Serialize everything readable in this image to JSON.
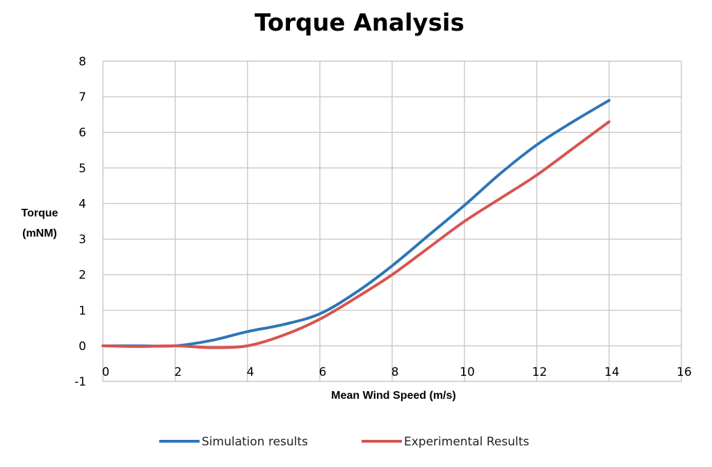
{
  "chart_data": {
    "type": "line",
    "title": "Torque Analysis",
    "xlabel": "Mean Wind Speed (m/s)",
    "ylabel_lines": [
      "Torque",
      "(mNM)"
    ],
    "xlim": [
      0,
      16
    ],
    "ylim": [
      -1,
      8
    ],
    "xticks": [
      "0",
      "2",
      "4",
      "6",
      "8",
      "10",
      "12",
      "14",
      "16"
    ],
    "yticks": [
      "-1",
      "0",
      "1",
      "2",
      "3",
      "4",
      "5",
      "6",
      "7",
      "8"
    ],
    "grid": true,
    "legend_position": "bottom",
    "series": [
      {
        "name": "Simulation results",
        "color": "#2e75b6",
        "x": [
          0,
          1,
          2,
          3,
          4,
          5,
          6,
          7,
          8,
          9,
          10,
          11,
          12,
          13,
          14
        ],
        "y": [
          0,
          0,
          0,
          0.15,
          0.4,
          0.6,
          0.9,
          1.5,
          2.25,
          3.1,
          3.95,
          4.85,
          5.65,
          6.3,
          6.9
        ]
      },
      {
        "name": "Experimental Results",
        "color": "#d9534f",
        "x": [
          0,
          1,
          2,
          3,
          4,
          5,
          6,
          7,
          8,
          9,
          10,
          11,
          12,
          13,
          14
        ],
        "y": [
          0,
          -0.02,
          0,
          -0.05,
          0,
          0.3,
          0.75,
          1.35,
          2.0,
          2.75,
          3.5,
          4.15,
          4.8,
          5.55,
          6.3
        ]
      }
    ]
  }
}
